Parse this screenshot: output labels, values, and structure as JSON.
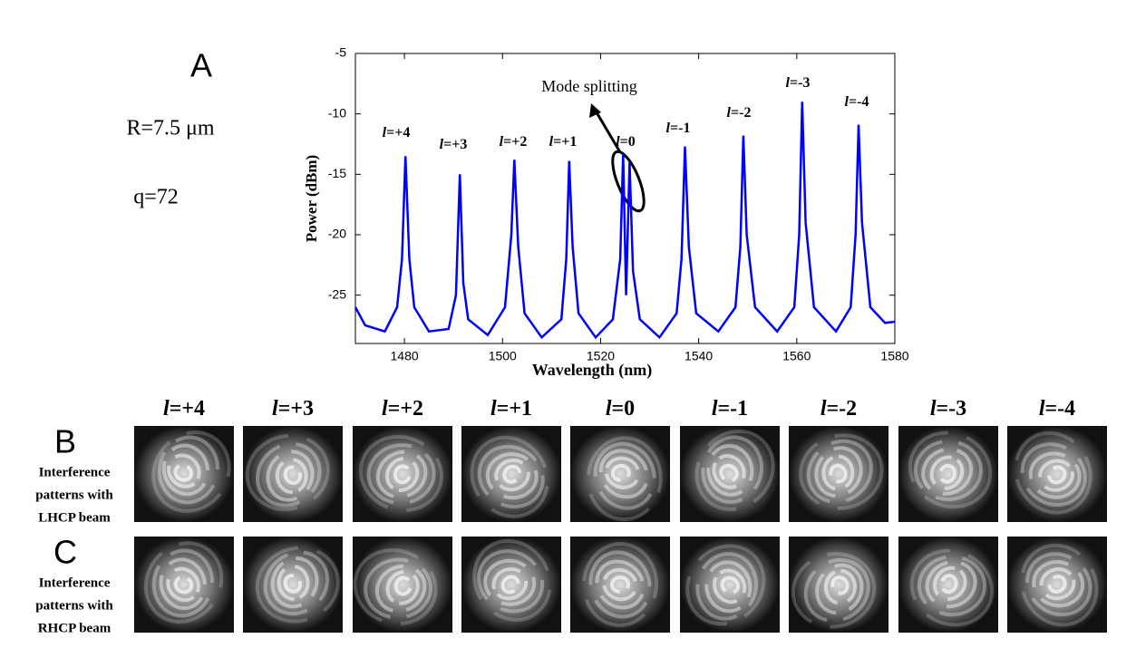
{
  "panel_a": {
    "label": "A",
    "radius": "R=7.5 μm",
    "q": "q=72"
  },
  "chart_data": {
    "type": "line",
    "x_label": "Wavelength (nm)",
    "y_label": "Power (dBm)",
    "annotation": "Mode splitting",
    "peak_labels": [
      "l=+4",
      "l=+3",
      "l=+2",
      "l=+1",
      "l=0",
      "l=-1",
      "l=-2",
      "l=-3",
      "l=-4"
    ],
    "x": [
      1470,
      1472,
      1476,
      1478.5,
      1479.5,
      1480.2,
      1481,
      1482,
      1485,
      1489,
      1490.5,
      1491.3,
      1492,
      1493,
      1497,
      1500.5,
      1501.8,
      1502.4,
      1503.2,
      1504.5,
      1508,
      1512,
      1513,
      1513.6,
      1514.3,
      1515.5,
      1519,
      1522.5,
      1524,
      1524.6,
      1525.2,
      1525.9,
      1526.6,
      1528,
      1532,
      1535.5,
      1536.5,
      1537.2,
      1538,
      1539.5,
      1544,
      1547.5,
      1548.5,
      1549.1,
      1549.8,
      1551.5,
      1556,
      1559.5,
      1560.5,
      1561.1,
      1561.8,
      1563.5,
      1568,
      1571,
      1572,
      1572.6,
      1573.3,
      1575,
      1578,
      1580
    ],
    "series": [
      {
        "color": "#0000ff",
        "values": [
          -26,
          -27.5,
          -28,
          -26,
          -22,
          -13.5,
          -22,
          -26,
          -28,
          -27.8,
          -25,
          -15,
          -24,
          -27,
          -28.3,
          -26,
          -20,
          -13.8,
          -21,
          -26.5,
          -28.5,
          -27,
          -22,
          -13.9,
          -21,
          -26.5,
          -28.5,
          -27,
          -22,
          -13.3,
          -25,
          -14,
          -23,
          -27,
          -28.5,
          -26.5,
          -22,
          -12.7,
          -21,
          -26.5,
          -28,
          -26,
          -21,
          -11.8,
          -20,
          -26,
          -28,
          -26,
          -20,
          -9,
          -19,
          -26,
          -28,
          -26,
          -20,
          -10.9,
          -19,
          -26,
          -27.3,
          -27.2
        ]
      }
    ],
    "xlim": [
      1470,
      1580
    ],
    "xticks": [
      1480,
      1500,
      1520,
      1540,
      1560,
      1580
    ],
    "ylim": [
      -29,
      -5
    ],
    "yticks": [
      -25,
      -20,
      -15,
      -10,
      -5
    ]
  },
  "patterns": {
    "columns": [
      "l=+4",
      "l=+3",
      "l=+2",
      "l=+1",
      "l=0",
      "l=-1",
      "l=-2",
      "l=-3",
      "l=-4"
    ],
    "rows": [
      {
        "label": "B",
        "caption": [
          "Interference",
          "patterns with",
          "LHCP beam"
        ]
      },
      {
        "label": "C",
        "caption": [
          "Interference",
          "patterns with",
          "RHCP beam"
        ]
      }
    ]
  }
}
